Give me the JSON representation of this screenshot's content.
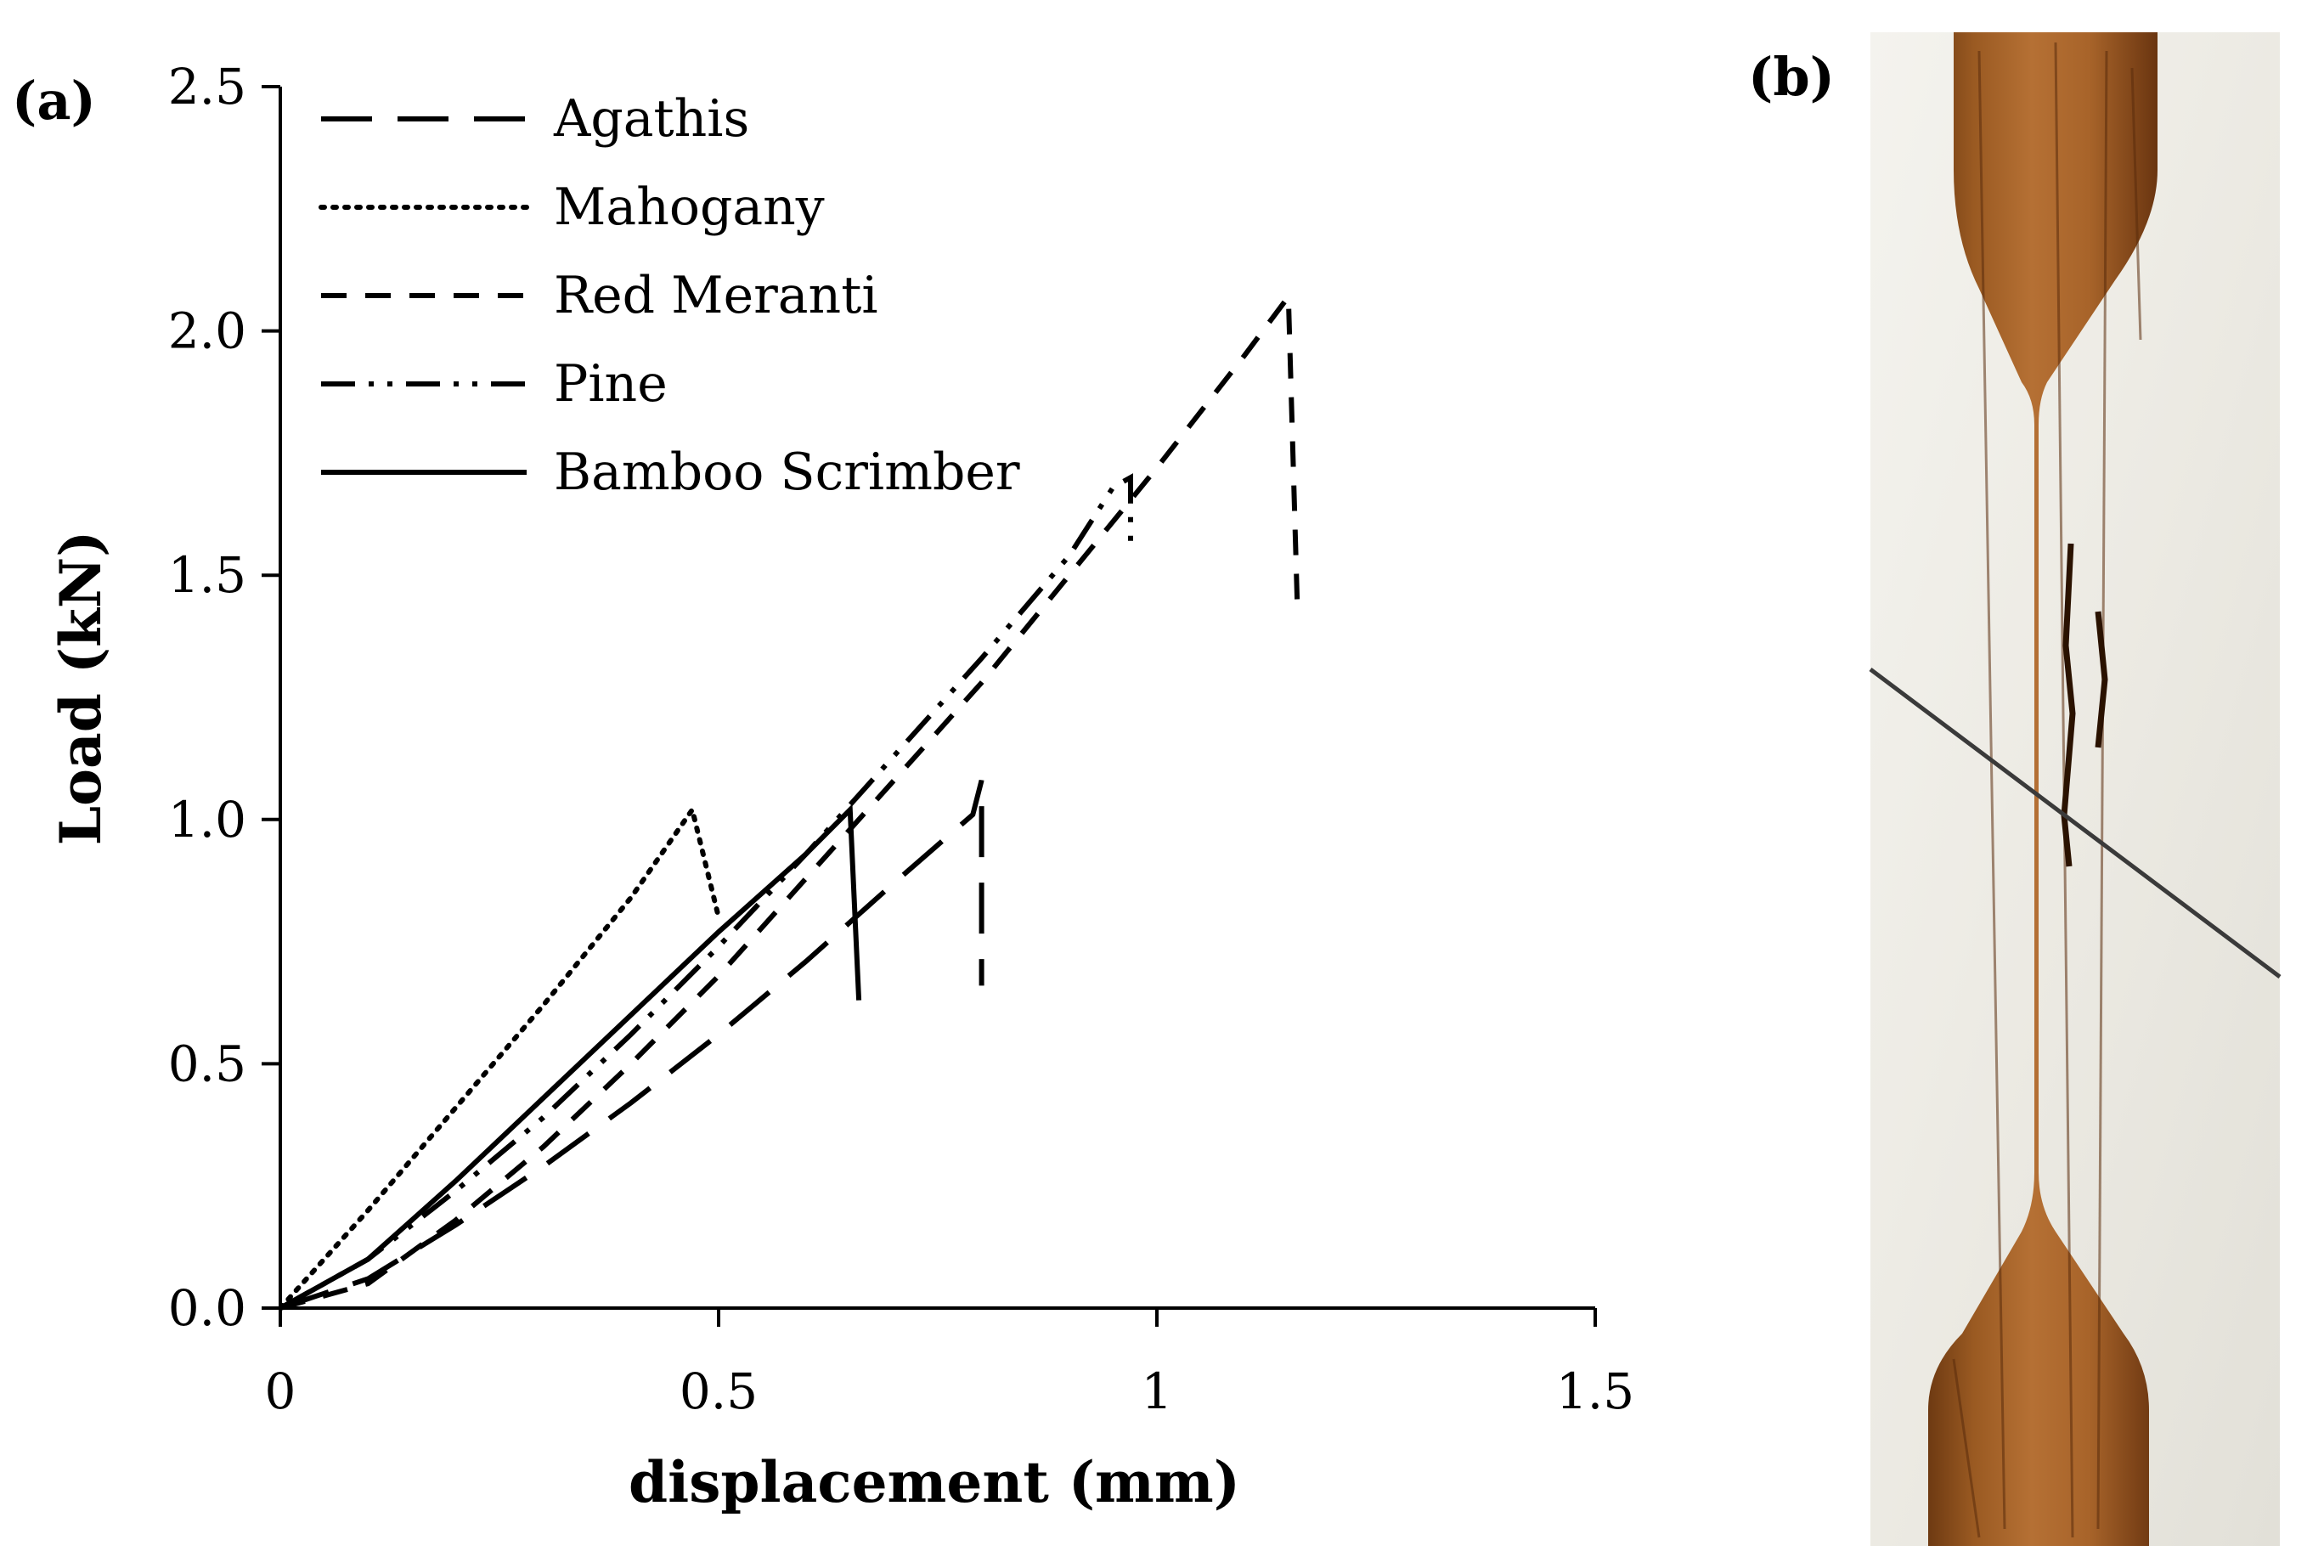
{
  "figure": {
    "panel_a_label": "(a)",
    "panel_b_label": "(b)",
    "panel_b_image": "photo of fractured wooden dog-bone tensile specimen on white background"
  },
  "chart_data": {
    "type": "line",
    "title": "",
    "xlabel": "displacement (mm)",
    "ylabel": "Load (kN)",
    "xlim": [
      0,
      1.5
    ],
    "ylim": [
      0,
      2.5
    ],
    "x_ticks": [
      0,
      0.5,
      1,
      1.5
    ],
    "x_tick_labels": [
      "0",
      "0.5",
      "1",
      "1.5"
    ],
    "y_ticks": [
      0,
      0.5,
      1,
      1.5,
      2,
      2.5
    ],
    "y_tick_labels": [
      "0.0",
      "0.5",
      "1.0",
      "1.5",
      "2.0",
      "2.5"
    ],
    "grid": false,
    "legend_position": "top-left",
    "series": [
      {
        "name": "Agathis",
        "style": "long-dash",
        "color": "#000000",
        "x": [
          0,
          0.1,
          0.2,
          0.3,
          0.4,
          0.5,
          0.6,
          0.7,
          0.79,
          0.8,
          0.8
        ],
        "y": [
          0,
          0.06,
          0.17,
          0.29,
          0.42,
          0.56,
          0.71,
          0.87,
          1.01,
          1.08,
          0.66
        ]
      },
      {
        "name": "Mahogany",
        "style": "dotted",
        "color": "#000000",
        "x": [
          0,
          0.1,
          0.2,
          0.3,
          0.4,
          0.47,
          0.5
        ],
        "y": [
          0,
          0.2,
          0.41,
          0.62,
          0.84,
          1.02,
          0.8
        ]
      },
      {
        "name": "Red Meranti",
        "style": "dash",
        "color": "#000000",
        "x": [
          0,
          0.1,
          0.2,
          0.3,
          0.4,
          0.5,
          0.6,
          0.7,
          0.8,
          0.9,
          1.0,
          1.1,
          1.15,
          1.16,
          1.17
        ],
        "y": [
          0,
          0.05,
          0.18,
          0.33,
          0.5,
          0.68,
          0.88,
          1.08,
          1.28,
          1.5,
          1.72,
          1.95,
          2.07,
          1.45,
          1.42
        ]
      },
      {
        "name": "Pine",
        "style": "dash-dot-dot",
        "color": "#000000",
        "x": [
          0,
          0.1,
          0.2,
          0.3,
          0.4,
          0.5,
          0.6,
          0.7,
          0.8,
          0.9,
          0.95,
          0.97,
          0.97
        ],
        "y": [
          0,
          0.1,
          0.24,
          0.39,
          0.56,
          0.74,
          0.93,
          1.13,
          1.33,
          1.54,
          1.68,
          1.7,
          1.57
        ]
      },
      {
        "name": "Bamboo Scrimber",
        "style": "solid",
        "color": "#000000",
        "x": [
          0,
          0.1,
          0.2,
          0.3,
          0.4,
          0.5,
          0.6,
          0.65,
          0.66
        ],
        "y": [
          0,
          0.1,
          0.26,
          0.43,
          0.6,
          0.77,
          0.93,
          1.02,
          0.63
        ]
      }
    ]
  }
}
